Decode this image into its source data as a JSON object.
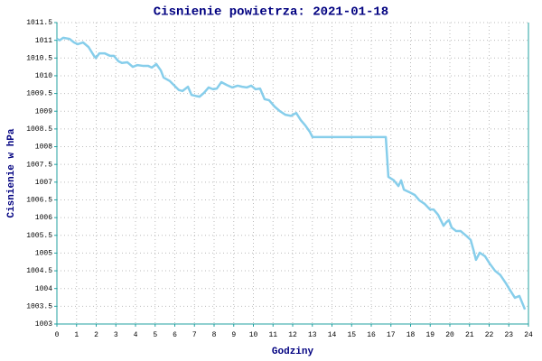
{
  "chart_data": {
    "type": "line",
    "title": "Cisnienie powietrza: 2021-01-18",
    "x_label": "Godziny",
    "y_label": "Cisnienie w hPa",
    "xlim": [
      0,
      24
    ],
    "xticks": [
      0,
      1,
      2,
      3,
      4,
      5,
      6,
      7,
      8,
      9,
      10,
      11,
      12,
      13,
      14,
      15,
      16,
      17,
      18,
      19,
      20,
      21,
      22,
      23,
      24
    ],
    "ylim": [
      1003,
      1011.5
    ],
    "yticks": [
      1003,
      1003.5,
      1004,
      1004.5,
      1005,
      1005.5,
      1006,
      1006.5,
      1007,
      1007.5,
      1008,
      1008.5,
      1009,
      1009.5,
      1010,
      1010.5,
      1011,
      1011.5
    ],
    "grid": true,
    "x": [
      0,
      0.14,
      0.32,
      0.64,
      0.87,
      1.06,
      1.33,
      1.61,
      1.89,
      1.98,
      2.16,
      2.44,
      2.71,
      2.9,
      3.13,
      3.31,
      3.59,
      3.86,
      4.09,
      4.37,
      4.64,
      4.83,
      5.06,
      5.29,
      5.43,
      5.75,
      6.02,
      6.2,
      6.39,
      6.67,
      6.85,
      7.08,
      7.26,
      7.49,
      7.72,
      7.95,
      8.14,
      8.37,
      8.64,
      8.92,
      9.2,
      9.43,
      9.66,
      9.89,
      10.11,
      10.34,
      10.57,
      10.8,
      11.08,
      11.35,
      11.63,
      11.91,
      12.18,
      12.41,
      12.64,
      12.87,
      13.01,
      13.29,
      16.74,
      16.87,
      17.15,
      17.38,
      17.52,
      17.66,
      17.93,
      18.21,
      18.44,
      18.71,
      18.99,
      19.17,
      19.4,
      19.68,
      19.82,
      19.95,
      20.09,
      20.32,
      20.55,
      20.87,
      21.06,
      21.2,
      21.33,
      21.52,
      21.79,
      22.02,
      22.3,
      22.57,
      22.85,
      23.08,
      23.31,
      23.54,
      23.77,
      23.82
    ],
    "series": [
      {
        "name": "Cisnienie",
        "color": "#87ceeb",
        "values": [
          1011.04,
          1011.0,
          1011.07,
          1011.04,
          1010.94,
          1010.89,
          1010.94,
          1010.81,
          1010.56,
          1010.5,
          1010.63,
          1010.63,
          1010.56,
          1010.56,
          1010.41,
          1010.36,
          1010.38,
          1010.25,
          1010.3,
          1010.28,
          1010.28,
          1010.23,
          1010.33,
          1010.15,
          1009.95,
          1009.85,
          1009.7,
          1009.6,
          1009.57,
          1009.69,
          1009.46,
          1009.43,
          1009.41,
          1009.52,
          1009.67,
          1009.62,
          1009.64,
          1009.82,
          1009.74,
          1009.67,
          1009.72,
          1009.69,
          1009.67,
          1009.72,
          1009.62,
          1009.64,
          1009.34,
          1009.31,
          1009.13,
          1009.0,
          1008.9,
          1008.87,
          1008.95,
          1008.75,
          1008.6,
          1008.42,
          1008.27,
          1008.27,
          1008.27,
          1007.15,
          1007.05,
          1006.89,
          1007.05,
          1006.79,
          1006.72,
          1006.64,
          1006.49,
          1006.39,
          1006.23,
          1006.23,
          1006.08,
          1005.77,
          1005.87,
          1005.93,
          1005.72,
          1005.62,
          1005.62,
          1005.47,
          1005.37,
          1005.09,
          1004.81,
          1005.01,
          1004.91,
          1004.71,
          1004.5,
          1004.38,
          1004.15,
          1003.94,
          1003.74,
          1003.79,
          1003.48,
          1003.41
        ]
      }
    ]
  }
}
